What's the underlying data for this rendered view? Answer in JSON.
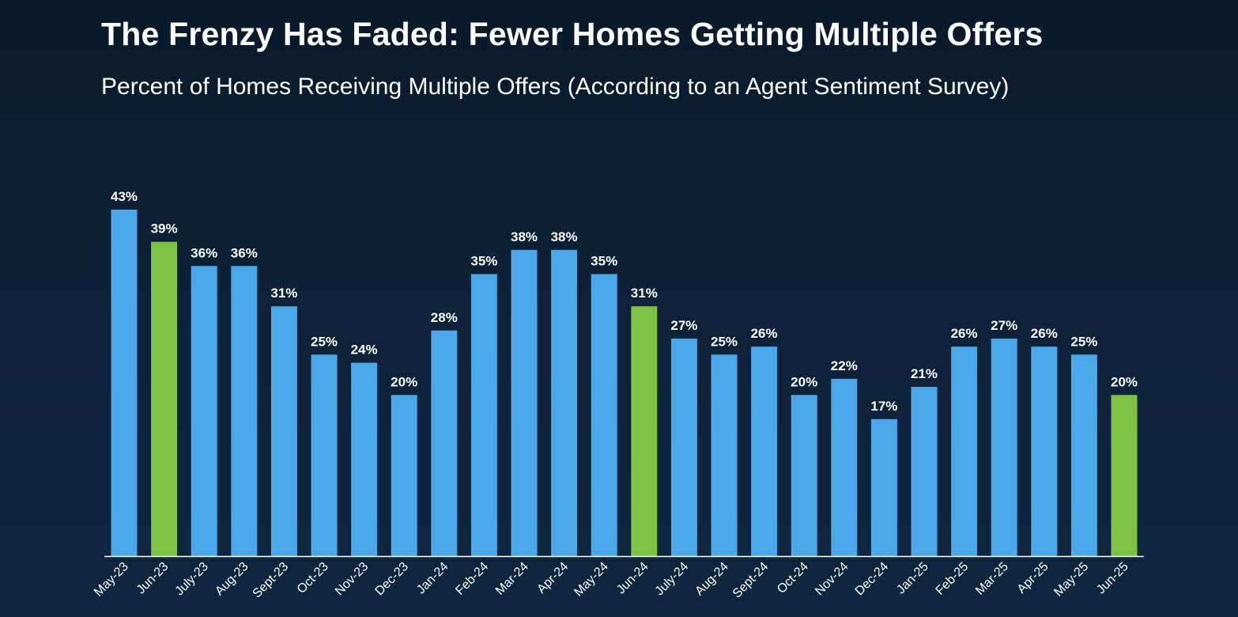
{
  "title": "The Frenzy Has Faded: Fewer Homes Getting Multiple Offers",
  "subtitle": "Percent of Homes Receiving Multiple Offers (According to an Agent Sentiment Survey)",
  "colors": {
    "default_bar": "#4aa8e8",
    "highlight_bar": "#7dc242",
    "axis": "#ffffff"
  },
  "chart_data": {
    "type": "bar",
    "categories": [
      "May-23",
      "Jun-23",
      "July-23",
      "Aug-23",
      "Sept-23",
      "Oct-23",
      "Nov-23",
      "Dec-23",
      "Jan-24",
      "Feb-24",
      "Mar-24",
      "Apr-24",
      "May-24",
      "Jun-24",
      "July-24",
      "Aug-24",
      "Sept-24",
      "Oct-24",
      "Nov-24",
      "Dec-24",
      "Jan-25",
      "Feb-25",
      "Mar-25",
      "Apr-25",
      "May-25",
      "Jun-25"
    ],
    "values": [
      43,
      39,
      36,
      36,
      31,
      25,
      24,
      20,
      28,
      35,
      38,
      38,
      35,
      31,
      27,
      25,
      26,
      20,
      22,
      17,
      21,
      26,
      27,
      26,
      25,
      20
    ],
    "data_labels": [
      "43%",
      "39%",
      "36%",
      "36%",
      "31%",
      "25%",
      "24%",
      "20%",
      "28%",
      "35%",
      "38%",
      "38%",
      "35%",
      "31%",
      "27%",
      "25%",
      "26%",
      "20%",
      "22%",
      "17%",
      "21%",
      "26%",
      "27%",
      "26%",
      "25%",
      "20%"
    ],
    "highlighted_categories": [
      "Jun-23",
      "Jun-24",
      "Jun-25"
    ],
    "title": "The Frenzy Has Faded: Fewer Homes Getting Multiple Offers",
    "subtitle": "Percent of Homes Receiving Multiple Offers (According to an Agent Sentiment Survey)",
    "xlabel": "",
    "ylabel": "",
    "ylim": [
      0,
      43
    ],
    "grid": false,
    "legend": "none"
  }
}
